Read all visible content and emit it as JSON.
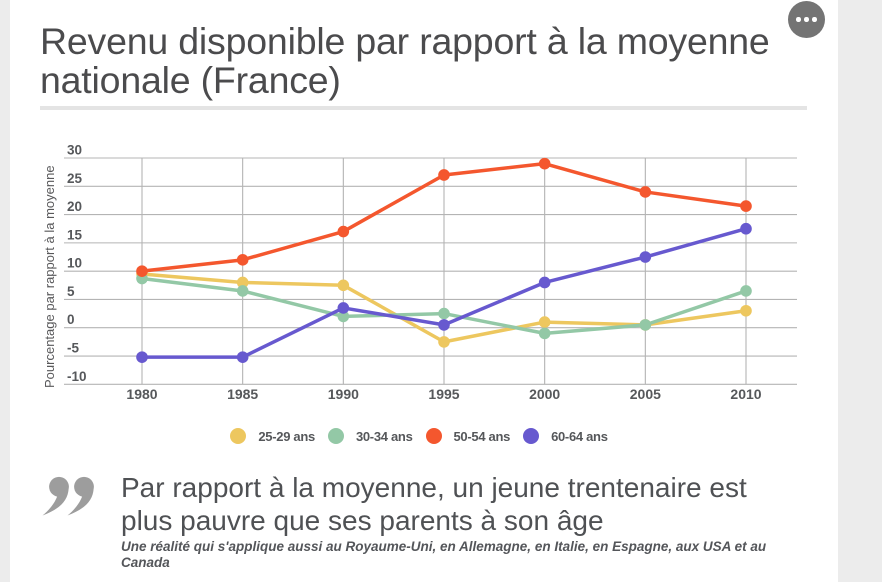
{
  "page": {
    "title": "Revenu disponible par rapport à la moyenne nationale (France)"
  },
  "menu_button": {
    "icon": "ellipsis"
  },
  "chart_data": {
    "type": "line",
    "title": "Revenu disponible par rapport à la moyenne nationale (France)",
    "x": [
      1980,
      1985,
      1990,
      1995,
      2000,
      2005,
      2010
    ],
    "series": [
      {
        "name": "25-29 ans",
        "color": "#edc75f",
        "values": [
          9.5,
          8,
          7.5,
          -2.5,
          1,
          0.5,
          3
        ]
      },
      {
        "name": "30-34 ans",
        "color": "#93c8a6",
        "values": [
          8.7,
          6.5,
          2,
          2.5,
          -1,
          0.5,
          6.5
        ]
      },
      {
        "name": "50-54 ans",
        "color": "#f4572e",
        "values": [
          10,
          12,
          17,
          27,
          29,
          24,
          21.5
        ]
      },
      {
        "name": "60-64 ans",
        "color": "#6759cf",
        "values": [
          -5.2,
          -5.2,
          3.5,
          0.5,
          8,
          12.5,
          17.5
        ]
      }
    ],
    "xlabel": "",
    "ylabel": "Pourcentage par rapport à la moyenne",
    "ylim": [
      -10,
      30
    ],
    "yticks": [
      30,
      25,
      20,
      15,
      10,
      5,
      0,
      -5,
      -10
    ],
    "grid": true,
    "legend_position": "bottom"
  },
  "quote": {
    "text": "Par rapport à la moyenne, un jeune trentenaire est plus pauvre que ses parents à son âge",
    "subtext": "Une réalité qui s'applique aussi au Royaume-Uni, en Allemagne, en Italie, en Espagne, aux USA et au Canada"
  },
  "colors": {
    "grid": "#b4b4b4",
    "axis_text": "#56585b",
    "quote_mark": "#9d9d9d"
  }
}
